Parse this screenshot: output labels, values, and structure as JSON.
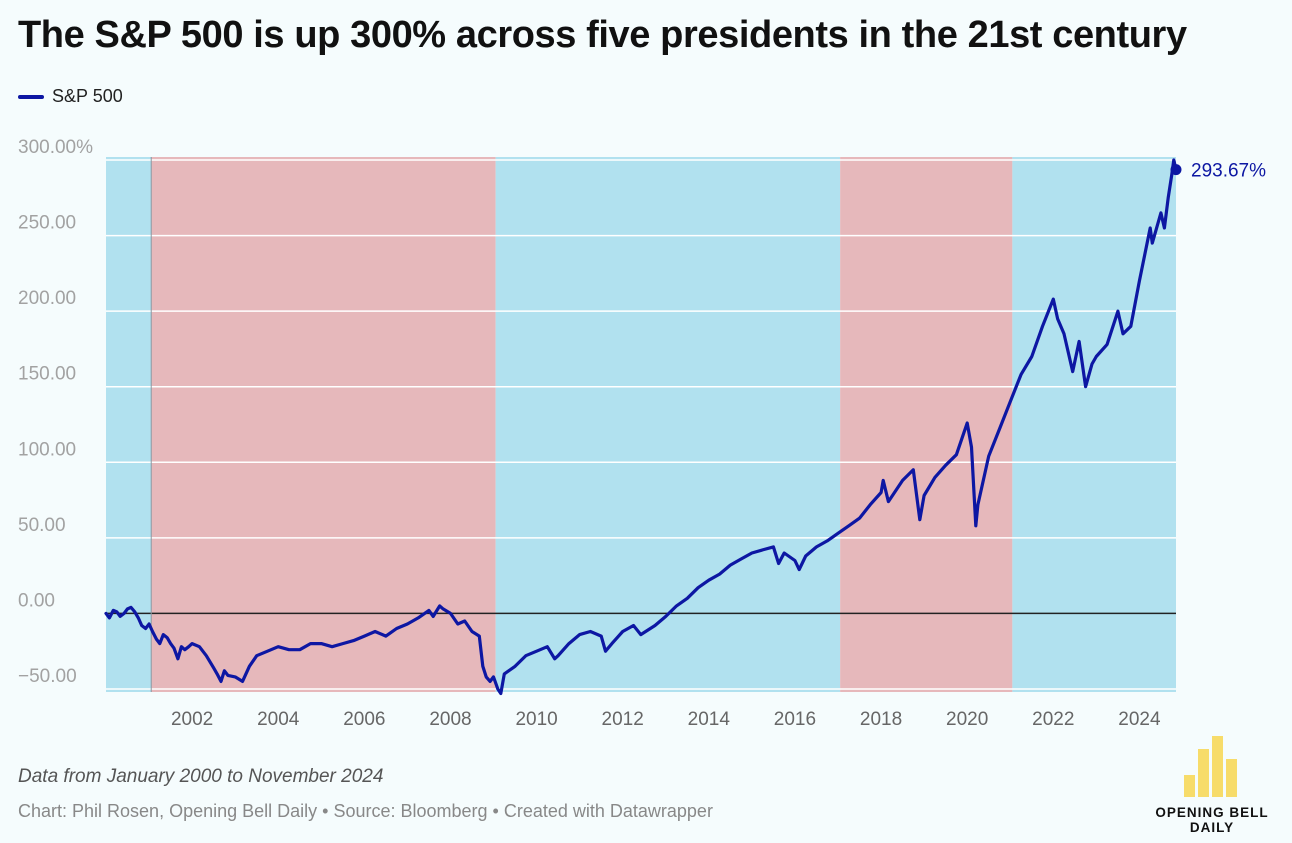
{
  "title": "The S&P 500 is up 300% across five presidents in the 21st century",
  "legend": {
    "label": "S&P 500",
    "color": "#0d17a3"
  },
  "note": "Data from January 2000 to November 2024",
  "credits": "Chart: Phil Rosen, Opening Bell Daily • Source: Bloomberg • Created with Datawrapper",
  "logo": {
    "line1": "OPENING BELL",
    "line2": "DAILY",
    "color": "#f7dc6a"
  },
  "colors": {
    "democrat_band": "#b1e1ef",
    "republican_band": "#e6b8bb",
    "line": "#0d17a3",
    "grid": "#ffffff",
    "axis_label": "#a2a2a2"
  },
  "chart_data": {
    "type": "line",
    "title": "The S&P 500 is up 300% across five presidents in the 21st century",
    "xlabel": "",
    "ylabel": "",
    "x_range": [
      2000.0,
      2024.85
    ],
    "ylim": [
      -52,
      302
    ],
    "y_ticks": [
      -50,
      0,
      50,
      100,
      150,
      200,
      250,
      300
    ],
    "y_tick_labels": [
      "−50.00",
      "0.00",
      "50.00",
      "100.00",
      "150.00",
      "200.00",
      "250.00",
      "300.00%"
    ],
    "x_ticks": [
      2002,
      2004,
      2006,
      2008,
      2010,
      2012,
      2014,
      2016,
      2018,
      2020,
      2022,
      2024
    ],
    "x_tick_labels": [
      "2002",
      "2004",
      "2006",
      "2008",
      "2010",
      "2012",
      "2014",
      "2016",
      "2018",
      "2020",
      "2022",
      "2024"
    ],
    "end_label": "293.67%",
    "legend_position": "top-left",
    "grid": true,
    "background_bands": [
      {
        "start": 2000.0,
        "end": 2001.05,
        "party": "D"
      },
      {
        "start": 2001.05,
        "end": 2009.05,
        "party": "R"
      },
      {
        "start": 2009.05,
        "end": 2017.05,
        "party": "D"
      },
      {
        "start": 2017.05,
        "end": 2021.05,
        "party": "R"
      },
      {
        "start": 2021.05,
        "end": 2024.85,
        "party": "D"
      }
    ],
    "series": [
      {
        "name": "S&P 500",
        "x": [
          2000.0,
          2000.08,
          2000.17,
          2000.25,
          2000.33,
          2000.42,
          2000.5,
          2000.58,
          2000.67,
          2000.75,
          2000.83,
          2000.92,
          2001.0,
          2001.08,
          2001.17,
          2001.25,
          2001.33,
          2001.42,
          2001.5,
          2001.58,
          2001.67,
          2001.75,
          2001.83,
          2001.92,
          2002.0,
          2002.17,
          2002.33,
          2002.5,
          2002.58,
          2002.67,
          2002.75,
          2002.83,
          2003.0,
          2003.17,
          2003.33,
          2003.5,
          2003.75,
          2004.0,
          2004.25,
          2004.5,
          2004.75,
          2005.0,
          2005.25,
          2005.5,
          2005.75,
          2006.0,
          2006.25,
          2006.5,
          2006.75,
          2007.0,
          2007.25,
          2007.5,
          2007.6,
          2007.75,
          2007.83,
          2008.0,
          2008.17,
          2008.33,
          2008.5,
          2008.67,
          2008.75,
          2008.83,
          2008.92,
          2009.0,
          2009.1,
          2009.17,
          2009.25,
          2009.5,
          2009.75,
          2010.0,
          2010.25,
          2010.42,
          2010.5,
          2010.75,
          2011.0,
          2011.25,
          2011.5,
          2011.6,
          2011.75,
          2012.0,
          2012.25,
          2012.42,
          2012.75,
          2013.0,
          2013.25,
          2013.5,
          2013.75,
          2014.0,
          2014.25,
          2014.5,
          2014.75,
          2015.0,
          2015.25,
          2015.5,
          2015.62,
          2015.75,
          2016.0,
          2016.1,
          2016.25,
          2016.5,
          2016.75,
          2017.0,
          2017.25,
          2017.5,
          2017.75,
          2018.0,
          2018.05,
          2018.17,
          2018.5,
          2018.75,
          2018.9,
          2019.0,
          2019.25,
          2019.5,
          2019.75,
          2020.0,
          2020.1,
          2020.2,
          2020.25,
          2020.5,
          2020.75,
          2021.0,
          2021.25,
          2021.5,
          2021.75,
          2022.0,
          2022.1,
          2022.25,
          2022.45,
          2022.6,
          2022.75,
          2022.9,
          2023.0,
          2023.25,
          2023.5,
          2023.62,
          2023.8,
          2024.0,
          2024.25,
          2024.3,
          2024.5,
          2024.58,
          2024.67,
          2024.75,
          2024.8,
          2024.85
        ],
        "values": [
          0,
          -3,
          2,
          1,
          -2,
          0,
          3,
          4,
          1,
          -3,
          -8,
          -10,
          -7,
          -12,
          -17,
          -20,
          -14,
          -16,
          -20,
          -23,
          -30,
          -22,
          -24,
          -22,
          -20,
          -22,
          -28,
          -36,
          -40,
          -45,
          -38,
          -41,
          -42,
          -45,
          -35,
          -28,
          -25,
          -22,
          -24,
          -24,
          -20,
          -20,
          -22,
          -20,
          -18,
          -15,
          -12,
          -15,
          -10,
          -7,
          -3,
          2,
          -2,
          5,
          3,
          0,
          -7,
          -5,
          -12,
          -15,
          -35,
          -42,
          -45,
          -42,
          -50,
          -53,
          -40,
          -35,
          -28,
          -25,
          -22,
          -30,
          -28,
          -20,
          -14,
          -12,
          -15,
          -25,
          -20,
          -12,
          -8,
          -14,
          -8,
          -2,
          5,
          10,
          17,
          22,
          26,
          32,
          36,
          40,
          42,
          44,
          33,
          40,
          35,
          29,
          38,
          44,
          48,
          53,
          58,
          63,
          72,
          80,
          88,
          74,
          88,
          95,
          62,
          78,
          90,
          98,
          105,
          126,
          110,
          58,
          72,
          104,
          122,
          140,
          158,
          170,
          190,
          208,
          195,
          185,
          160,
          180,
          150,
          165,
          170,
          178,
          200,
          185,
          190,
          220,
          255,
          245,
          265,
          255,
          275,
          290,
          300,
          293.67
        ]
      }
    ]
  }
}
